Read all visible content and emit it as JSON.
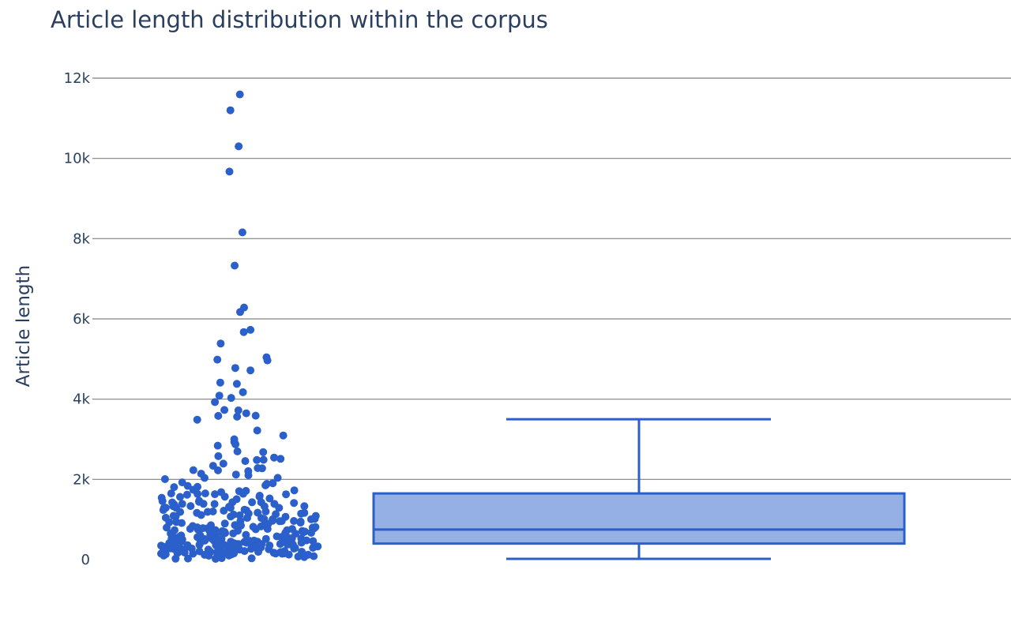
{
  "chart_data": {
    "type": "box",
    "title": "Article length distribution within the corpus",
    "ylabel": "Article length",
    "xlabel": "",
    "ylim": [
      0,
      12000
    ],
    "yticks": [
      {
        "value": 0,
        "label": "0"
      },
      {
        "value": 2000,
        "label": "2k"
      },
      {
        "value": 4000,
        "label": "4k"
      },
      {
        "value": 6000,
        "label": "6k"
      },
      {
        "value": 8000,
        "label": "8k"
      },
      {
        "value": 10000,
        "label": "10k"
      },
      {
        "value": 12000,
        "label": "12k"
      }
    ],
    "grid": true,
    "colors": {
      "marker": "#2b5fc9",
      "box_fill": "#95b0e4",
      "text": "#2a3f5f",
      "grid": "#808080"
    },
    "box": {
      "min": 20,
      "q1": 400,
      "median": 750,
      "q3": 1650,
      "upper_fence": 3500
    },
    "points": [
      11600,
      11180,
      10300,
      9700,
      8150,
      7350,
      6250,
      6150,
      5700,
      5670,
      5350,
      5080,
      4980,
      4940,
      4780,
      4700,
      4450,
      4360,
      4160,
      4110,
      4020,
      3960,
      3760,
      3700,
      3640,
      3600,
      3560,
      3530,
      3480,
      3230,
      3080,
      3000,
      2960,
      2870,
      2820,
      2650,
      2600,
      2580,
      2540,
      2500,
      2420,
      2380,
      2330,
      2300,
      2260,
      2220,
      2200,
      2180,
      2150,
      2100,
      2060,
      2020,
      1980,
      1920,
      1880,
      1840,
      1800,
      1770,
      1740,
      1700,
      1670,
      1650,
      1640,
      1620,
      1600,
      1580,
      1560,
      1540,
      1500,
      1480,
      1450,
      1420,
      1400,
      1380,
      1360,
      1340,
      1320,
      1300,
      1280,
      1260,
      1240,
      1220,
      1200,
      1180,
      1160,
      1140,
      1120,
      1100,
      1080,
      1060,
      1040,
      1020,
      1000,
      980,
      960,
      940,
      920,
      900,
      880,
      860,
      840,
      820,
      800,
      790,
      780,
      770,
      760,
      750,
      740,
      730,
      720,
      710,
      700,
      690,
      680,
      670,
      660,
      650,
      640,
      630,
      620,
      610,
      600,
      590,
      580,
      570,
      560,
      550,
      540,
      530,
      520,
      510,
      500,
      495,
      490,
      485,
      480,
      475,
      470,
      465,
      460,
      455,
      450,
      445,
      440,
      435,
      430,
      425,
      420,
      415,
      410,
      405,
      400,
      395,
      390,
      385,
      380,
      375,
      370,
      365,
      360,
      355,
      350,
      345,
      340,
      335,
      330,
      325,
      320,
      315,
      310,
      305,
      300,
      295,
      290,
      285,
      280,
      275,
      270,
      265,
      260,
      255,
      250,
      245,
      240,
      235,
      230,
      225,
      220,
      215,
      210,
      205,
      200,
      195,
      190,
      185,
      180,
      175,
      170,
      165,
      160,
      155,
      150,
      145,
      140,
      135,
      130,
      125,
      120,
      115,
      110,
      100,
      90,
      80,
      70,
      60,
      50,
      40,
      30,
      20,
      1650,
      1620,
      1580,
      1550,
      1500,
      1460,
      1420,
      1380,
      1350,
      1320,
      1290,
      1260,
      1230,
      1200,
      1170,
      1140,
      1110,
      1080,
      1050,
      1020,
      990,
      960,
      930,
      900,
      870,
      840,
      810,
      780,
      750,
      720,
      690,
      660,
      630,
      600,
      570,
      540,
      510,
      480,
      450,
      420,
      390,
      360,
      330,
      300,
      270,
      240,
      210,
      180,
      150,
      120,
      1600,
      1500,
      1400,
      1300,
      1200,
      1100,
      1000,
      900,
      800,
      700,
      600,
      500,
      400,
      300,
      200,
      100,
      1450,
      1350,
      1250,
      1150,
      1050,
      950,
      850,
      750,
      650,
      550,
      450,
      350,
      250,
      150,
      2700,
      2450,
      2250,
      1950,
      1850,
      1750,
      1550,
      1350,
      1150,
      950,
      750,
      550,
      350
    ]
  }
}
